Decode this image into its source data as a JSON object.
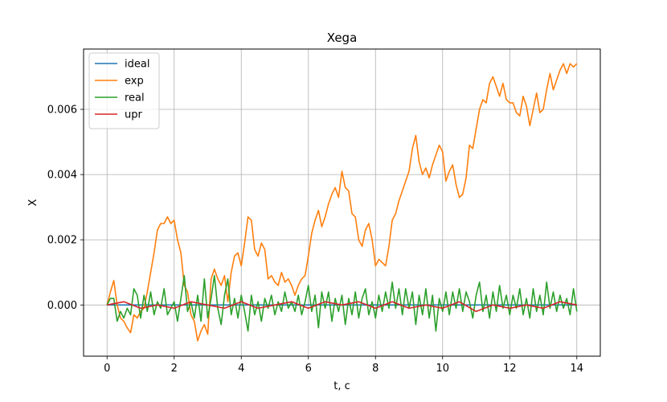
{
  "chart_data": {
    "type": "line",
    "title": "Xega",
    "xlabel": "t, c",
    "ylabel": "X",
    "xlim": [
      -0.7,
      14.7
    ],
    "ylim": [
      -0.00157,
      0.00785
    ],
    "xticks": [
      0,
      2,
      4,
      6,
      8,
      10,
      12,
      14
    ],
    "xtick_labels": [
      "0",
      "2",
      "4",
      "6",
      "8",
      "10",
      "12",
      "14"
    ],
    "yticks": [
      0.0,
      0.002,
      0.004,
      0.006
    ],
    "ytick_labels": [
      "0.000",
      "0.002",
      "0.004",
      "0.006"
    ],
    "grid": true,
    "legend_position": "upper-left",
    "series": [
      {
        "name": "ideal",
        "color": "#1f77b4",
        "x": [
          0,
          14
        ],
        "y": [
          0.0,
          0.0
        ]
      },
      {
        "name": "exp",
        "color": "#ff7f0e",
        "x": [
          0,
          0.1,
          0.2,
          0.3,
          0.4,
          0.5,
          0.6,
          0.7,
          0.8,
          0.9,
          1.0,
          1.1,
          1.2,
          1.3,
          1.4,
          1.5,
          1.6,
          1.7,
          1.8,
          1.9,
          2.0,
          2.1,
          2.2,
          2.3,
          2.4,
          2.5,
          2.6,
          2.7,
          2.8,
          2.9,
          3.0,
          3.1,
          3.2,
          3.3,
          3.4,
          3.5,
          3.6,
          3.7,
          3.8,
          3.9,
          4.0,
          4.1,
          4.2,
          4.3,
          4.4,
          4.5,
          4.6,
          4.7,
          4.8,
          4.9,
          5.0,
          5.1,
          5.2,
          5.3,
          5.4,
          5.5,
          5.6,
          5.7,
          5.8,
          5.9,
          6.0,
          6.1,
          6.2,
          6.3,
          6.4,
          6.5,
          6.6,
          6.7,
          6.8,
          6.9,
          7.0,
          7.1,
          7.2,
          7.3,
          7.4,
          7.5,
          7.6,
          7.7,
          7.8,
          7.9,
          8.0,
          8.1,
          8.2,
          8.3,
          8.4,
          8.5,
          8.6,
          8.7,
          8.8,
          8.9,
          9.0,
          9.1,
          9.2,
          9.3,
          9.4,
          9.5,
          9.6,
          9.7,
          9.8,
          9.9,
          10.0,
          10.1,
          10.2,
          10.3,
          10.4,
          10.5,
          10.6,
          10.7,
          10.8,
          10.9,
          11.0,
          11.1,
          11.2,
          11.3,
          11.4,
          11.5,
          11.6,
          11.7,
          11.8,
          11.9,
          12.0,
          12.1,
          12.2,
          12.3,
          12.4,
          12.5,
          12.6,
          12.7,
          12.8,
          12.9,
          13.0,
          13.1,
          13.2,
          13.3,
          13.4,
          13.5,
          13.6,
          13.7,
          13.8,
          13.9,
          14.0
        ],
        "y": [
          0.0,
          0.0004,
          0.00075,
          0.0,
          -0.0004,
          -0.0005,
          -0.0007,
          -0.00085,
          -0.0003,
          -0.0004,
          -0.0002,
          -0.0001,
          0.0004,
          0.001,
          0.0016,
          0.0023,
          0.0025,
          0.0025,
          0.0027,
          0.0025,
          0.0026,
          0.002,
          0.0016,
          0.0006,
          0.0004,
          -0.0003,
          -0.0005,
          -0.0011,
          -0.0008,
          -0.0006,
          -0.0009,
          0.0008,
          0.0011,
          0.0008,
          0.0006,
          0.0009,
          0.0001,
          0.001,
          0.0015,
          0.0016,
          0.0012,
          0.0019,
          0.0027,
          0.0026,
          0.0017,
          0.0015,
          0.0019,
          0.0017,
          0.0008,
          0.0009,
          0.0007,
          0.0006,
          0.001,
          0.0007,
          0.0008,
          0.0006,
          0.0003,
          0.0006,
          0.0008,
          0.0009,
          0.0015,
          0.0022,
          0.0026,
          0.0029,
          0.0024,
          0.0027,
          0.0031,
          0.0034,
          0.0036,
          0.0033,
          0.0041,
          0.0036,
          0.0035,
          0.0028,
          0.0027,
          0.002,
          0.0018,
          0.0023,
          0.0025,
          0.002,
          0.0012,
          0.0014,
          0.0013,
          0.0012,
          0.0018,
          0.0026,
          0.0028,
          0.0032,
          0.0035,
          0.0038,
          0.0041,
          0.0048,
          0.0052,
          0.0044,
          0.004,
          0.0042,
          0.0039,
          0.0043,
          0.0046,
          0.0049,
          0.0047,
          0.0038,
          0.0041,
          0.0043,
          0.0037,
          0.0033,
          0.0034,
          0.0039,
          0.0049,
          0.0048,
          0.0054,
          0.006,
          0.0063,
          0.0062,
          0.0068,
          0.007,
          0.0067,
          0.0064,
          0.0068,
          0.0063,
          0.0062,
          0.0062,
          0.0059,
          0.0058,
          0.0064,
          0.0061,
          0.0055,
          0.006,
          0.0065,
          0.0059,
          0.006,
          0.0066,
          0.0071,
          0.0066,
          0.0069,
          0.0072,
          0.0074,
          0.0071,
          0.0074,
          0.0073,
          0.0074
        ]
      },
      {
        "name": "real",
        "color": "#2ca02c",
        "x": [
          0,
          0.1,
          0.2,
          0.3,
          0.4,
          0.5,
          0.6,
          0.7,
          0.8,
          0.9,
          1.0,
          1.1,
          1.2,
          1.3,
          1.4,
          1.5,
          1.6,
          1.7,
          1.8,
          1.9,
          2.0,
          2.1,
          2.2,
          2.3,
          2.4,
          2.5,
          2.6,
          2.7,
          2.8,
          2.9,
          3.0,
          3.1,
          3.2,
          3.3,
          3.4,
          3.5,
          3.6,
          3.7,
          3.8,
          3.9,
          4.0,
          4.1,
          4.2,
          4.3,
          4.4,
          4.5,
          4.6,
          4.7,
          4.8,
          4.9,
          5.0,
          5.1,
          5.2,
          5.3,
          5.4,
          5.5,
          5.6,
          5.7,
          5.8,
          5.9,
          6.0,
          6.1,
          6.2,
          6.3,
          6.4,
          6.5,
          6.6,
          6.7,
          6.8,
          6.9,
          7.0,
          7.1,
          7.2,
          7.3,
          7.4,
          7.5,
          7.6,
          7.7,
          7.8,
          7.9,
          8.0,
          8.1,
          8.2,
          8.3,
          8.4,
          8.5,
          8.6,
          8.7,
          8.8,
          8.9,
          9.0,
          9.1,
          9.2,
          9.3,
          9.4,
          9.5,
          9.6,
          9.7,
          9.8,
          9.9,
          10.0,
          10.1,
          10.2,
          10.3,
          10.4,
          10.5,
          10.6,
          10.7,
          10.8,
          10.9,
          11.0,
          11.1,
          11.2,
          11.3,
          11.4,
          11.5,
          11.6,
          11.7,
          11.8,
          11.9,
          12.0,
          12.1,
          12.2,
          12.3,
          12.4,
          12.5,
          12.6,
          12.7,
          12.8,
          12.9,
          13.0,
          13.1,
          13.2,
          13.3,
          13.4,
          13.5,
          13.6,
          13.7,
          13.8,
          13.9,
          14.0
        ],
        "y": [
          0.0,
          0.0002,
          0.0002,
          -0.0005,
          -0.0002,
          -0.0004,
          -0.0001,
          -0.0003,
          0.0005,
          0.0003,
          -0.0004,
          0.0003,
          -0.0002,
          0.0004,
          -0.0003,
          0.0001,
          -0.0001,
          0.0005,
          -0.0003,
          -0.0001,
          0.0001,
          -0.0005,
          0.0002,
          0.0009,
          -0.0002,
          0.0001,
          -0.0004,
          0.0003,
          -0.0005,
          0.0008,
          -0.0004,
          0.0002,
          0.0009,
          -0.0001,
          -0.0006,
          0.0003,
          0.0008,
          -0.0003,
          0.0002,
          -0.0004,
          0.0003,
          -0.0002,
          -0.0008,
          0.0003,
          -0.0003,
          0.0001,
          -0.0005,
          0.0002,
          -0.0001,
          0.0003,
          -0.0003,
          0.0001,
          -0.0002,
          0.0004,
          -0.0001,
          0.0001,
          -0.0002,
          0.0003,
          -0.0003,
          0.0001,
          0.0006,
          -0.0002,
          0.0003,
          -0.0007,
          0.0004,
          -0.0001,
          0.0004,
          -0.0005,
          0.0002,
          -0.0002,
          0.0003,
          -0.0006,
          0.0002,
          -0.0003,
          0.0004,
          -0.0004,
          0.0002,
          0.0005,
          -0.0003,
          0.0001,
          -0.0004,
          0.0003,
          -0.0002,
          0.0004,
          -0.0001,
          0.0007,
          -0.0001,
          0.0005,
          -0.0003,
          0.0005,
          -0.0001,
          0.0004,
          -0.0006,
          0.0003,
          -0.0003,
          0.0005,
          -0.0004,
          0.0003,
          -0.0008,
          0.0002,
          -0.0002,
          0.0004,
          -0.0003,
          0.0004,
          -0.0001,
          0.0005,
          -0.0002,
          0.0004,
          0.0001,
          -0.0004,
          0.0003,
          0.0007,
          -0.0002,
          0.0003,
          -0.0004,
          0.0004,
          -0.0002,
          0.0006,
          -0.0001,
          0.0003,
          -0.0003,
          0.0003,
          -0.0001,
          0.0005,
          -0.0003,
          0.0002,
          -0.0004,
          0.0005,
          -0.0002,
          0.0003,
          -0.0003,
          0.0007,
          -0.0001,
          0.0004,
          -0.0002,
          0.0003,
          -0.0001,
          0.0002,
          -0.0003,
          0.0005,
          -0.0002
        ]
      },
      {
        "name": "upr",
        "color": "#d62728",
        "x": [
          0,
          0.5,
          1.0,
          1.5,
          2.0,
          2.5,
          3.0,
          3.5,
          4.0,
          4.5,
          5.0,
          5.5,
          6.0,
          6.5,
          7.0,
          7.5,
          8.0,
          8.5,
          9.0,
          9.5,
          10.0,
          10.5,
          11.0,
          11.5,
          12.0,
          12.5,
          13.0,
          13.5,
          14.0
        ],
        "y": [
          0.0,
          0.0001,
          -0.0001,
          0.0,
          -0.0001,
          0.0001,
          0.0,
          -0.0001,
          0.0001,
          -0.0001,
          0.0,
          0.0001,
          -0.0001,
          0.0001,
          0.0,
          0.0001,
          -0.0001,
          0.0001,
          -0.0001,
          0.0,
          -0.0001,
          0.0001,
          -0.0002,
          0.0,
          -0.0001,
          0.0,
          -0.0001,
          0.0001,
          0.0
        ]
      }
    ]
  }
}
